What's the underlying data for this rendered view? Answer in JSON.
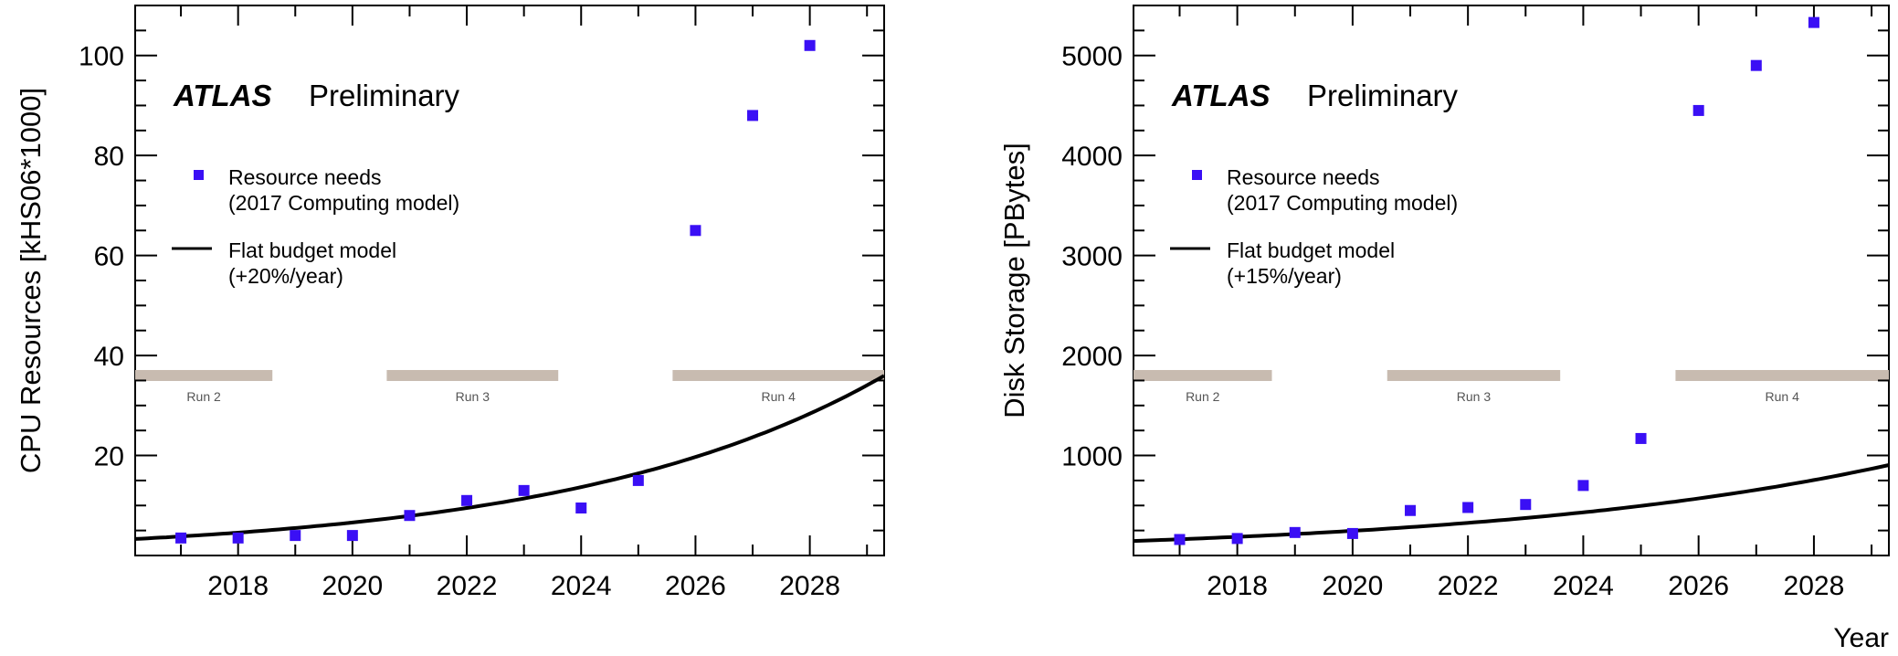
{
  "figure": {
    "x_axis_title": "Year",
    "marker_color": "#3a0ff5",
    "run_bar_color": "#c8bbb0",
    "curve_color": "#000000"
  },
  "chart_data": [
    {
      "type": "scatter",
      "panel": "left",
      "title": "",
      "experiment": "ATLAS",
      "status_label": "Preliminary",
      "xlabel": "",
      "ylabel": "CPU Resources [kHS06*1000]",
      "xlim": [
        2016.2,
        2029.3
      ],
      "ylim": [
        0,
        110
      ],
      "x_ticks": [
        2018,
        2020,
        2022,
        2024,
        2026,
        2028
      ],
      "y_ticks": [
        20,
        40,
        60,
        80,
        100
      ],
      "legend": [
        {
          "kind": "marker",
          "line1": "Resource needs",
          "line2": "(2017 Computing model)"
        },
        {
          "kind": "line",
          "line1": "Flat budget model",
          "line2": "(+20%/year)"
        }
      ],
      "legend_position": "upper-left",
      "runs": [
        {
          "label": "Run 2",
          "start": 2016.2,
          "end": 2018.6,
          "level": 36
        },
        {
          "label": "Run 3",
          "start": 2020.6,
          "end": 2023.6,
          "level": 36
        },
        {
          "label": "Run 4",
          "start": 2025.6,
          "end": 2029.3,
          "level": 36
        }
      ],
      "series": [
        {
          "name": "Resource needs",
          "x": [
            2017,
            2018,
            2019,
            2020,
            2021,
            2022,
            2023,
            2024,
            2025,
            2026,
            2027,
            2028
          ],
          "y": [
            3.5,
            3.5,
            4,
            4,
            8,
            11,
            13,
            9.5,
            15,
            65,
            88,
            102
          ]
        }
      ],
      "flat_budget": {
        "name": "Flat budget model",
        "start_year": 2016.2,
        "start_value": 3.3,
        "growth_per_year": 0.2
      }
    },
    {
      "type": "scatter",
      "panel": "right",
      "title": "",
      "experiment": "ATLAS",
      "status_label": "Preliminary",
      "xlabel": "Year",
      "ylabel": "Disk Storage [PBytes]",
      "xlim": [
        2016.2,
        2029.3
      ],
      "ylim": [
        0,
        5500
      ],
      "x_ticks": [
        2018,
        2020,
        2022,
        2024,
        2026,
        2028
      ],
      "y_ticks": [
        1000,
        2000,
        3000,
        4000,
        5000
      ],
      "legend": [
        {
          "kind": "marker",
          "line1": "Resource needs",
          "line2": "(2017 Computing model)"
        },
        {
          "kind": "line",
          "line1": "Flat budget model",
          "line2": "(+15%/year)"
        }
      ],
      "legend_position": "upper-left",
      "runs": [
        {
          "label": "Run 2",
          "start": 2016.2,
          "end": 2018.6,
          "level": 1800
        },
        {
          "label": "Run 3",
          "start": 2020.6,
          "end": 2023.6,
          "level": 1800
        },
        {
          "label": "Run 4",
          "start": 2025.6,
          "end": 2029.3,
          "level": 1800
        }
      ],
      "series": [
        {
          "name": "Resource needs",
          "x": [
            2017,
            2018,
            2019,
            2020,
            2021,
            2022,
            2023,
            2024,
            2025,
            2026,
            2027,
            2028
          ],
          "y": [
            160,
            170,
            230,
            220,
            450,
            480,
            510,
            700,
            1170,
            4450,
            4900,
            5330
          ]
        }
      ],
      "flat_budget": {
        "name": "Flat budget model",
        "start_year": 2016.2,
        "start_value": 145,
        "growth_per_year": 0.15
      }
    }
  ]
}
